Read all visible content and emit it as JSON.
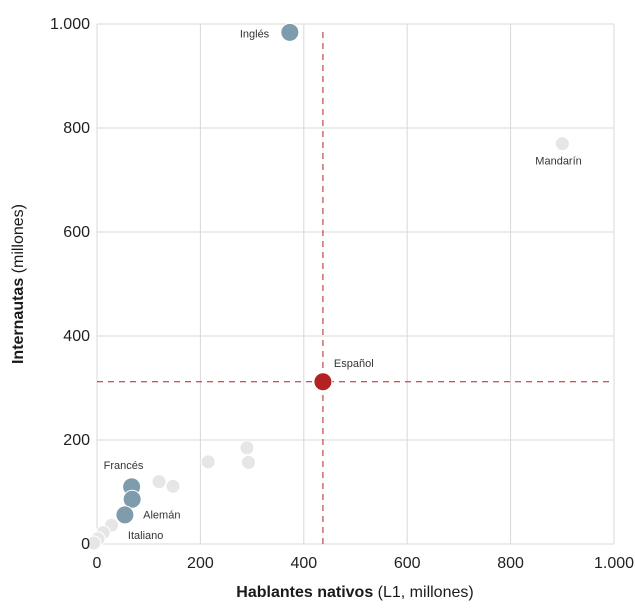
{
  "chart_data": {
    "type": "scatter",
    "xlabel": {
      "bold": "Hablantes nativos",
      "normal": " (L1, millones)"
    },
    "ylabel": {
      "bold": "Internautas",
      "normal": " (millones)"
    },
    "xlim": [
      0,
      1000
    ],
    "ylim": [
      0,
      1000
    ],
    "xticks": [
      0,
      200,
      400,
      600,
      800,
      1000
    ],
    "yticks": [
      0,
      200,
      400,
      600,
      800,
      1000
    ],
    "xtick_labels": [
      "0",
      "200",
      "400",
      "600",
      "800",
      "1.000"
    ],
    "ytick_labels": [
      "0",
      "200",
      "400",
      "600",
      "800",
      "1.000"
    ],
    "grid": true,
    "reference_lines": {
      "x": 437,
      "y": 312
    },
    "colors": {
      "highlight": "#b22222",
      "featured": "#7e9cab",
      "other": "#e6e6e6",
      "reference_line": "#b22222",
      "grid": "#d9d9d9"
    },
    "points": [
      {
        "label": "Inglés",
        "x": 373,
        "y": 984,
        "group": "featured"
      },
      {
        "label": "Mandarín",
        "x": 900,
        "y": 770,
        "group": "other"
      },
      {
        "label": "Español",
        "x": 437,
        "y": 312,
        "group": "highlight"
      },
      {
        "label": "Francés",
        "x": 67,
        "y": 110,
        "group": "featured"
      },
      {
        "label": "Alemán",
        "x": 68,
        "y": 86,
        "group": "featured"
      },
      {
        "label": "Italiano",
        "x": 54,
        "y": 56,
        "group": "featured"
      },
      {
        "label": "",
        "x": 290,
        "y": 185,
        "group": "other"
      },
      {
        "label": "",
        "x": 293,
        "y": 157,
        "group": "other"
      },
      {
        "label": "",
        "x": 215,
        "y": 158,
        "group": "other"
      },
      {
        "label": "",
        "x": 120,
        "y": 120,
        "group": "other"
      },
      {
        "label": "",
        "x": 147,
        "y": 111,
        "group": "other"
      },
      {
        "label": "",
        "x": 28,
        "y": 36,
        "group": "other"
      },
      {
        "label": "",
        "x": 12,
        "y": 22,
        "group": "other"
      },
      {
        "label": "",
        "x": 2,
        "y": 10,
        "group": "other"
      },
      {
        "label": "",
        "x": -6,
        "y": 2,
        "group": "other"
      }
    ]
  }
}
